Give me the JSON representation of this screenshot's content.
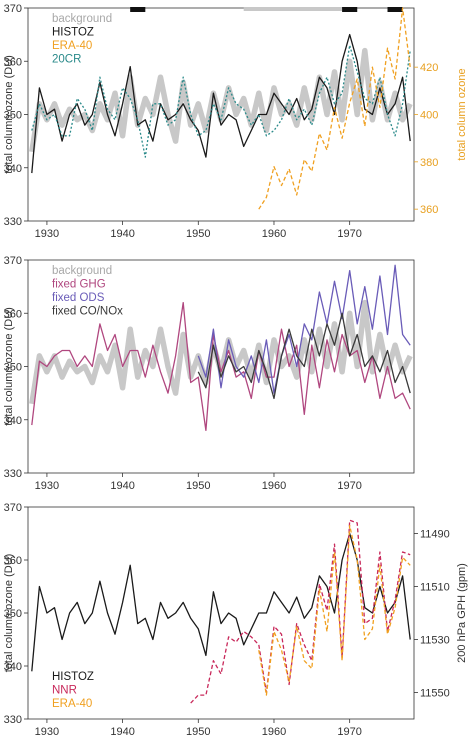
{
  "chart_data": [
    {
      "type": "line",
      "ylabel": "total column ozone (DU)",
      "ylabel_right": "total column ozone",
      "xlim": [
        1927.5,
        1978.5
      ],
      "ylim": [
        330,
        370
      ],
      "yticks": [
        330,
        340,
        350,
        360,
        370
      ],
      "xticks": [
        1930,
        1940,
        1950,
        1960,
        1970
      ],
      "y2lim": [
        355,
        445
      ],
      "y2ticks": [
        360,
        380,
        400,
        420
      ],
      "legend": [
        "background",
        "HISTOZ",
        "ERA-40",
        "20CR"
      ],
      "legend_position": "top-left",
      "top_bars": [
        [
          1941,
          1943
        ],
        [
          1956,
          1969
        ],
        [
          1969,
          1971
        ],
        [
          1975,
          1977
        ]
      ],
      "series": [
        {
          "name": "background",
          "color": "#c8c8c8",
          "style": "thick",
          "x": [
            1928,
            1929,
            1930,
            1931,
            1932,
            1933,
            1934,
            1935,
            1936,
            1937,
            1938,
            1939,
            1940,
            1941,
            1942,
            1943,
            1944,
            1945,
            1946,
            1947,
            1948,
            1949,
            1950,
            1951,
            1952,
            1953,
            1954,
            1955,
            1956,
            1957,
            1958,
            1959,
            1960,
            1961,
            1962,
            1963,
            1964,
            1965,
            1966,
            1967,
            1968,
            1969,
            1970,
            1971,
            1972,
            1973,
            1974,
            1975,
            1976,
            1977,
            1978
          ],
          "values": [
            343,
            352,
            349,
            352,
            348,
            351,
            349,
            350,
            347,
            352,
            349,
            354,
            346,
            357,
            348,
            353,
            350,
            357,
            350,
            345,
            356,
            348,
            352,
            347,
            354,
            349,
            355,
            350,
            353,
            348,
            354,
            347,
            355,
            350,
            352,
            348,
            355,
            349,
            357,
            350,
            358,
            349,
            360,
            350,
            362,
            349,
            356,
            349,
            354,
            349,
            352
          ]
        },
        {
          "name": "HISTOZ",
          "color": "#1a1a1a",
          "style": "solid",
          "x": [
            1928,
            1929,
            1930,
            1931,
            1932,
            1933,
            1934,
            1935,
            1936,
            1937,
            1938,
            1939,
            1940,
            1941,
            1942,
            1943,
            1944,
            1945,
            1946,
            1947,
            1948,
            1949,
            1950,
            1951,
            1952,
            1953,
            1954,
            1955,
            1956,
            1957,
            1958,
            1959,
            1960,
            1961,
            1962,
            1963,
            1964,
            1965,
            1966,
            1967,
            1968,
            1969,
            1970,
            1971,
            1972,
            1973,
            1974,
            1975,
            1976,
            1977,
            1978
          ],
          "values": [
            339,
            355,
            350,
            351,
            345,
            350,
            352,
            348,
            350,
            356,
            350,
            346,
            352,
            359,
            348,
            349,
            345,
            352,
            349,
            350,
            352,
            349,
            347,
            342,
            354,
            348,
            350,
            349,
            344,
            347,
            350,
            350,
            354,
            352,
            350,
            353,
            349,
            351,
            357,
            355,
            350,
            360,
            365,
            360,
            351,
            350,
            355,
            350,
            352,
            357,
            345
          ]
        },
        {
          "name": "20CR",
          "color": "#2a8a8a",
          "style": "dotted",
          "x": [
            1928,
            1929,
            1930,
            1931,
            1932,
            1933,
            1934,
            1935,
            1936,
            1937,
            1938,
            1939,
            1940,
            1941,
            1942,
            1943,
            1944,
            1945,
            1946,
            1947,
            1948,
            1949,
            1950,
            1951,
            1952,
            1953,
            1954,
            1955,
            1956,
            1957,
            1958,
            1959,
            1960,
            1961,
            1962,
            1963,
            1964,
            1965,
            1966,
            1967,
            1968,
            1969,
            1970,
            1971,
            1972,
            1973,
            1974,
            1975,
            1976,
            1977,
            1978
          ],
          "values": [
            347,
            352,
            349,
            350,
            346,
            346,
            353,
            351,
            347,
            357,
            351,
            349,
            355,
            353,
            349,
            342,
            352,
            352,
            348,
            349,
            357,
            350,
            346,
            347,
            352,
            349,
            355,
            352,
            351,
            348,
            350,
            346,
            347,
            349,
            353,
            349,
            351,
            348,
            354,
            357,
            352,
            354,
            363,
            358,
            353,
            352,
            357,
            350,
            346,
            352,
            362
          ]
        },
        {
          "name": "ERA-40",
          "color": "#f0a020",
          "style": "dashed",
          "axis": "right",
          "x": [
            1958,
            1959,
            1960,
            1961,
            1962,
            1963,
            1964,
            1965,
            1966,
            1967,
            1968,
            1969,
            1970,
            1971,
            1972,
            1973,
            1974,
            1975,
            1976,
            1977,
            1978
          ],
          "values": [
            360,
            365,
            378,
            370,
            377,
            366,
            381,
            376,
            392,
            385,
            403,
            390,
            405,
            415,
            395,
            420,
            403,
            428,
            415,
            445,
            420
          ]
        }
      ]
    },
    {
      "type": "line",
      "ylabel": "total column ozone (DU)",
      "xlim": [
        1927.5,
        1978.5
      ],
      "ylim": [
        330,
        370
      ],
      "yticks": [
        330,
        340,
        350,
        360,
        370
      ],
      "xticks": [
        1930,
        1940,
        1950,
        1960,
        1970
      ],
      "legend": [
        "background",
        "fixed GHG",
        "fixed ODS",
        "fixed CO/NOx"
      ],
      "legend_position": "top-left",
      "series": [
        {
          "name": "background",
          "color": "#c8c8c8",
          "style": "thick",
          "x": [
            1928,
            1929,
            1930,
            1931,
            1932,
            1933,
            1934,
            1935,
            1936,
            1937,
            1938,
            1939,
            1940,
            1941,
            1942,
            1943,
            1944,
            1945,
            1946,
            1947,
            1948,
            1949,
            1950,
            1951,
            1952,
            1953,
            1954,
            1955,
            1956,
            1957,
            1958,
            1959,
            1960,
            1961,
            1962,
            1963,
            1964,
            1965,
            1966,
            1967,
            1968,
            1969,
            1970,
            1971,
            1972,
            1973,
            1974,
            1975,
            1976,
            1977,
            1978
          ],
          "values": [
            343,
            352,
            349,
            352,
            348,
            351,
            349,
            350,
            347,
            352,
            349,
            354,
            346,
            357,
            348,
            353,
            350,
            357,
            350,
            345,
            356,
            348,
            352,
            347,
            354,
            349,
            355,
            350,
            353,
            348,
            354,
            347,
            355,
            350,
            352,
            348,
            355,
            349,
            357,
            350,
            358,
            349,
            360,
            350,
            362,
            349,
            356,
            349,
            354,
            349,
            352
          ]
        },
        {
          "name": "fixed GHG",
          "color": "#b0477f",
          "style": "solid",
          "x": [
            1928,
            1929,
            1930,
            1931,
            1932,
            1933,
            1934,
            1935,
            1936,
            1937,
            1938,
            1939,
            1940,
            1941,
            1942,
            1943,
            1944,
            1945,
            1946,
            1947,
            1948,
            1949,
            1950,
            1951,
            1952,
            1953,
            1954,
            1955,
            1956,
            1957,
            1958,
            1959,
            1960,
            1961,
            1962,
            1963,
            1964,
            1965,
            1966,
            1967,
            1968,
            1969,
            1970,
            1971,
            1972,
            1973,
            1974,
            1975,
            1976,
            1977,
            1978
          ],
          "values": [
            339,
            351,
            350,
            352,
            353,
            353,
            350,
            352,
            350,
            358,
            353,
            356,
            350,
            353,
            353,
            348,
            354,
            349,
            345,
            352,
            362,
            347,
            348,
            338,
            356,
            349,
            353,
            348,
            349,
            344,
            353,
            348,
            348,
            357,
            350,
            354,
            341,
            354,
            346,
            355,
            349,
            356,
            352,
            353,
            347,
            352,
            344,
            350,
            344,
            345,
            342
          ]
        },
        {
          "name": "fixed ODS",
          "color": "#6a5cb8",
          "style": "solid",
          "x": [
            1950,
            1951,
            1952,
            1953,
            1954,
            1955,
            1956,
            1957,
            1958,
            1959,
            1960,
            1961,
            1962,
            1963,
            1964,
            1965,
            1966,
            1967,
            1968,
            1969,
            1970,
            1971,
            1972,
            1973,
            1974,
            1975,
            1976,
            1977,
            1978
          ],
          "values": [
            352,
            348,
            357,
            346,
            355,
            350,
            348,
            352,
            347,
            355,
            345,
            352,
            356,
            350,
            358,
            355,
            364,
            358,
            366,
            359,
            368,
            358,
            365,
            357,
            367,
            356,
            369,
            356,
            354
          ]
        },
        {
          "name": "fixed CO/NOx",
          "color": "#3a3a3a",
          "style": "solid",
          "x": [
            1950,
            1951,
            1952,
            1953,
            1954,
            1955,
            1956,
            1957,
            1958,
            1959,
            1960,
            1961,
            1962,
            1963,
            1964,
            1965,
            1966,
            1967,
            1968,
            1969,
            1970,
            1971,
            1972,
            1973,
            1974,
            1975,
            1976,
            1977,
            1978
          ],
          "values": [
            349,
            346,
            354,
            348,
            352,
            349,
            350,
            347,
            353,
            349,
            344,
            352,
            357,
            352,
            350,
            357,
            352,
            358,
            354,
            360,
            352,
            356,
            350,
            352,
            349,
            353,
            347,
            350,
            345
          ]
        }
      ]
    },
    {
      "type": "line",
      "ylabel": "total column ozone (DU)",
      "ylabel_right": "200 hPa GPH (gpm)",
      "xlim": [
        1927.5,
        1978.5
      ],
      "ylim": [
        330,
        370
      ],
      "yticks": [
        330,
        340,
        350,
        360,
        370
      ],
      "xticks": [
        1930,
        1940,
        1950,
        1960,
        1970
      ],
      "y2lim": [
        11480,
        11560
      ],
      "y2ticks": [
        11490,
        11510,
        11530,
        11550
      ],
      "y2_inverted": true,
      "legend": [
        "HISTOZ",
        "NNR",
        "ERA-40"
      ],
      "legend_position": "bottom-left",
      "series": [
        {
          "name": "HISTOZ",
          "color": "#1a1a1a",
          "style": "solid",
          "x": [
            1928,
            1929,
            1930,
            1931,
            1932,
            1933,
            1934,
            1935,
            1936,
            1937,
            1938,
            1939,
            1940,
            1941,
            1942,
            1943,
            1944,
            1945,
            1946,
            1947,
            1948,
            1949,
            1950,
            1951,
            1952,
            1953,
            1954,
            1955,
            1956,
            1957,
            1958,
            1959,
            1960,
            1961,
            1962,
            1963,
            1964,
            1965,
            1966,
            1967,
            1968,
            1969,
            1970,
            1971,
            1972,
            1973,
            1974,
            1975,
            1976,
            1977,
            1978
          ],
          "values": [
            339,
            355,
            350,
            351,
            345,
            350,
            352,
            348,
            350,
            356,
            350,
            346,
            352,
            359,
            348,
            349,
            345,
            352,
            349,
            350,
            352,
            349,
            347,
            342,
            354,
            348,
            350,
            349,
            344,
            347,
            350,
            350,
            354,
            352,
            350,
            353,
            349,
            351,
            357,
            355,
            350,
            360,
            365,
            360,
            351,
            350,
            355,
            350,
            352,
            357,
            345
          ]
        },
        {
          "name": "NNR",
          "color": "#c8285a",
          "style": "dashed",
          "axis": "right",
          "x": [
            1949,
            1950,
            1951,
            1952,
            1953,
            1954,
            1955,
            1956,
            1957,
            1958,
            1959,
            1960,
            1961,
            1962,
            1963,
            1964,
            1965,
            1966,
            1967,
            1968,
            1969,
            1970,
            1971,
            1972,
            1973,
            1974,
            1975,
            1976,
            1977,
            1978
          ],
          "values": [
            11554,
            11551,
            11551,
            11538,
            11543,
            11529,
            11531,
            11527,
            11529,
            11532,
            11550,
            11525,
            11528,
            11547,
            11524,
            11532,
            11538,
            11509,
            11519,
            11494,
            11537,
            11485,
            11486,
            11524,
            11522,
            11497,
            11527,
            11515,
            11497,
            11498
          ]
        },
        {
          "name": "ERA-40",
          "color": "#f0a020",
          "style": "dashed",
          "axis": "right",
          "x": [
            1958,
            1959,
            1960,
            1961,
            1962,
            1963,
            1964,
            1965,
            1966,
            1967,
            1968,
            1969,
            1970,
            1971,
            1972,
            1973,
            1974,
            1975,
            1976,
            1977,
            1978
          ],
          "values": [
            11534,
            11551,
            11527,
            11534,
            11546,
            11525,
            11538,
            11541,
            11511,
            11527,
            11497,
            11538,
            11487,
            11500,
            11530,
            11526,
            11502,
            11528,
            11518,
            11499,
            11502
          ]
        }
      ]
    }
  ]
}
